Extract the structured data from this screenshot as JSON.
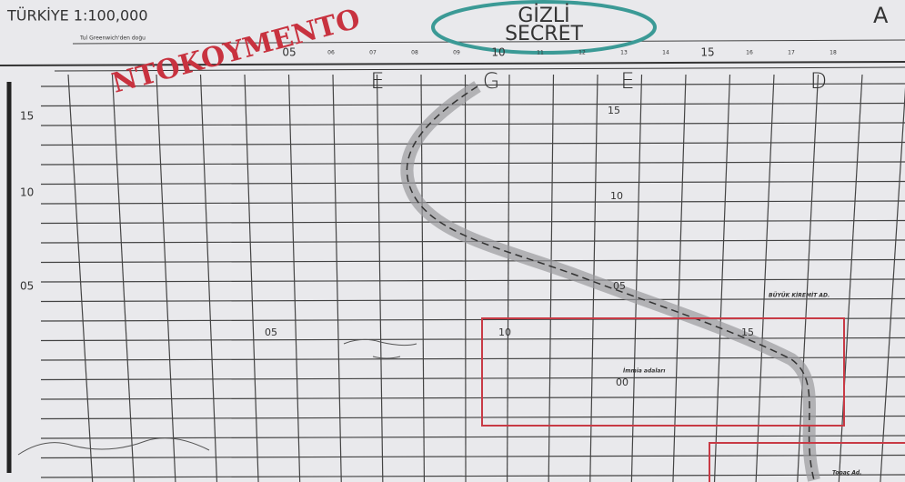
{
  "header": {
    "title": "TÜRKİYE 1:100,000",
    "stamp": "NTOKOYMENTO",
    "classification": [
      "GİZLİ",
      "SECRET"
    ],
    "sheet_letter": "A",
    "longitude_note": "Tul Greenwich'den doğu"
  },
  "top_scale": [
    "05",
    "06",
    "07",
    "08",
    "09",
    "10",
    "11",
    "12",
    "13",
    "14",
    "15",
    "16",
    "17",
    "18"
  ],
  "column_letters": [
    "E",
    "G",
    "E",
    "D"
  ],
  "left_labels": [
    "15",
    "10",
    "05"
  ],
  "center_labels": [
    "15",
    "10",
    "05",
    "00"
  ],
  "row_labels": [
    "05",
    "10",
    "15"
  ],
  "place_names": [
    "BÜYÜK KİREMİT AD.",
    "İmmia adaları",
    "Topaç Ad."
  ]
}
